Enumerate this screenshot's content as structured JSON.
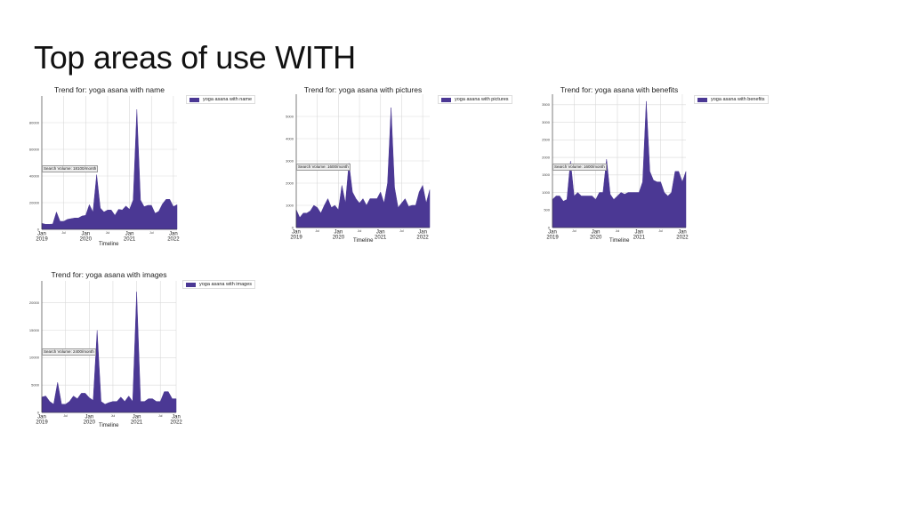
{
  "slide": {
    "title": "Top areas of use WITH"
  },
  "style": {
    "fill_color": "#4b3894",
    "grid_color": "#d9d9d9"
  },
  "chart_data": [
    {
      "type": "area",
      "title": "Trend for: yoga asana with name",
      "xlabel": "Timeline",
      "ylabel": "",
      "series": [
        {
          "name": "yoga asana with name",
          "values": [
            4500,
            3800,
            3800,
            4000,
            13000,
            6000,
            6000,
            7500,
            8000,
            8500,
            8500,
            10000,
            10500,
            18500,
            13000,
            41000,
            16000,
            13000,
            14500,
            14500,
            10500,
            15000,
            14500,
            17500,
            15000,
            22000,
            90000,
            22000,
            17000,
            18000,
            18000,
            12000,
            13500,
            19000,
            22500,
            22500,
            17000,
            18500
          ]
        }
      ],
      "x_start": "2019-01",
      "x_step": "month",
      "ylim": [
        0,
        100000
      ],
      "yticks": [
        0,
        20000,
        40000,
        60000,
        80000
      ],
      "xticks": [
        {
          "label": "Jan",
          "sub": "2019",
          "idx": 0
        },
        {
          "label": "Jul",
          "sub": "",
          "idx": 6
        },
        {
          "label": "Jan",
          "sub": "2020",
          "idx": 12
        },
        {
          "label": "Jul",
          "sub": "",
          "idx": 18
        },
        {
          "label": "Jan",
          "sub": "2021",
          "idx": 24
        },
        {
          "label": "Jul",
          "sub": "",
          "idx": 30
        },
        {
          "label": "Jan",
          "sub": "2022",
          "idx": 36
        }
      ],
      "annotation": "Search Volume: 18100/month",
      "grid": true,
      "legend_position": "right"
    },
    {
      "type": "area",
      "title": "Trend for: yoga asana with pictures",
      "xlabel": "Timeline",
      "ylabel": "",
      "series": [
        {
          "name": "yoga asana with pictures",
          "values": [
            800,
            450,
            650,
            650,
            750,
            1000,
            900,
            650,
            1000,
            1300,
            900,
            1000,
            800,
            1900,
            1100,
            2900,
            1600,
            1300,
            1100,
            1300,
            1000,
            1300,
            1300,
            1300,
            1600,
            1100,
            2000,
            5400,
            1800,
            900,
            1100,
            1300,
            950,
            1000,
            1000,
            1600,
            1900,
            1100,
            1700
          ]
        }
      ],
      "x_start": "2019-01",
      "x_step": "month",
      "ylim": [
        0,
        6000
      ],
      "yticks": [
        0,
        1000,
        2000,
        3000,
        4000,
        5000
      ],
      "xticks": [
        {
          "label": "Jan",
          "sub": "2019",
          "idx": 0
        },
        {
          "label": "Jul",
          "sub": "",
          "idx": 6
        },
        {
          "label": "Jan",
          "sub": "2020",
          "idx": 12
        },
        {
          "label": "Jul",
          "sub": "",
          "idx": 18
        },
        {
          "label": "Jan",
          "sub": "2021",
          "idx": 24
        },
        {
          "label": "Jul",
          "sub": "",
          "idx": 30
        },
        {
          "label": "Jan",
          "sub": "2022",
          "idx": 36
        }
      ],
      "annotation": "Search Volume: 1600/month",
      "grid": true,
      "legend_position": "right"
    },
    {
      "type": "area",
      "title": "Trend for: yoga asana with benefits",
      "xlabel": "Timeline",
      "ylabel": "",
      "series": [
        {
          "name": "yoga asana with benefits",
          "values": [
            800,
            900,
            900,
            750,
            800,
            1900,
            900,
            1000,
            900,
            900,
            900,
            900,
            800,
            1000,
            1000,
            1950,
            950,
            800,
            900,
            1000,
            950,
            1000,
            1000,
            1000,
            1000,
            1300,
            3600,
            1600,
            1350,
            1300,
            1300,
            1000,
            900,
            1000,
            1600,
            1600,
            1300,
            1600
          ]
        }
      ],
      "x_start": "2019-01",
      "x_step": "month",
      "ylim": [
        0,
        3800
      ],
      "yticks": [
        0,
        500,
        1000,
        1500,
        2000,
        2500,
        3000,
        3500
      ],
      "xticks": [
        {
          "label": "Jan",
          "sub": "2019",
          "idx": 0
        },
        {
          "label": "Jul",
          "sub": "",
          "idx": 6
        },
        {
          "label": "Jan",
          "sub": "2020",
          "idx": 12
        },
        {
          "label": "Jul",
          "sub": "",
          "idx": 18
        },
        {
          "label": "Jan",
          "sub": "2021",
          "idx": 24
        },
        {
          "label": "Jul",
          "sub": "",
          "idx": 30
        },
        {
          "label": "Jan",
          "sub": "2022",
          "idx": 36
        }
      ],
      "annotation": "Search Volume: 1600/month",
      "grid": true,
      "legend_position": "right"
    },
    {
      "type": "area",
      "title": "Trend for: yoga asana with images",
      "xlabel": "Timeline",
      "ylabel": "",
      "series": [
        {
          "name": "yoga asana with images",
          "values": [
            2800,
            3000,
            2000,
            1500,
            5500,
            1500,
            1500,
            2000,
            3000,
            2500,
            3500,
            3500,
            2700,
            2200,
            15000,
            2000,
            1500,
            1800,
            2000,
            2000,
            2800,
            2000,
            3000,
            2000,
            22000,
            2000,
            2000,
            2500,
            2500,
            2000,
            2000,
            3800,
            3800,
            2500,
            2500
          ]
        }
      ],
      "x_start": "2019-01",
      "x_step": "month",
      "ylim": [
        0,
        24000
      ],
      "yticks": [
        0,
        5000,
        10000,
        15000,
        20000
      ],
      "xticks": [
        {
          "label": "Jan",
          "sub": "2019",
          "idx": 0
        },
        {
          "label": "Jul",
          "sub": "",
          "idx": 6
        },
        {
          "label": "Jan",
          "sub": "2020",
          "idx": 12
        },
        {
          "label": "Jul",
          "sub": "",
          "idx": 18
        },
        {
          "label": "Jan",
          "sub": "2021",
          "idx": 24
        },
        {
          "label": "Jul",
          "sub": "",
          "idx": 30
        },
        {
          "label": "Jan",
          "sub": "2022",
          "idx": 36
        }
      ],
      "annotation": "Search Volume: 2400/month",
      "grid": true,
      "legend_position": "right"
    }
  ]
}
